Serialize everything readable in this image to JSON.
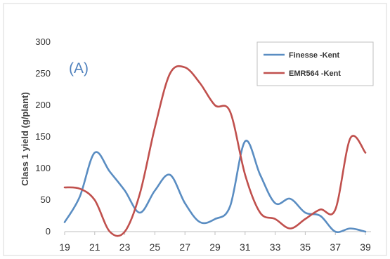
{
  "chart_data": {
    "type": "line",
    "panel_label": "(A)",
    "title": "",
    "xlabel": "",
    "ylabel": "Class 1 yield (g/plant)",
    "x_ticks": [
      19,
      21,
      23,
      25,
      27,
      29,
      31,
      33,
      35,
      37,
      39
    ],
    "y_ticks": [
      0,
      50,
      100,
      150,
      200,
      250,
      300
    ],
    "xlim": [
      19,
      39
    ],
    "ylim": [
      0,
      300
    ],
    "grid": false,
    "legend_position": "top-right",
    "series": [
      {
        "name": "Finesse -Kent",
        "color": "#5a8dc2",
        "x": [
          19,
          20,
          21,
          22,
          23,
          24,
          25,
          26,
          27,
          28,
          29,
          30,
          31,
          32,
          33,
          34,
          35,
          36,
          37,
          38,
          39
        ],
        "y": [
          15,
          55,
          125,
          95,
          65,
          30,
          65,
          90,
          45,
          15,
          20,
          40,
          143,
          90,
          45,
          52,
          30,
          25,
          0,
          5,
          0
        ]
      },
      {
        "name": "EMR564 -Kent",
        "color": "#c0504d",
        "x": [
          19,
          20,
          21,
          22,
          23,
          24,
          25,
          26,
          27,
          28,
          29,
          30,
          31,
          32,
          33,
          34,
          35,
          36,
          37,
          38,
          39
        ],
        "y": [
          70,
          68,
          50,
          0,
          0,
          60,
          165,
          250,
          260,
          235,
          200,
          190,
          90,
          30,
          20,
          5,
          20,
          35,
          35,
          148,
          125
        ]
      }
    ]
  }
}
